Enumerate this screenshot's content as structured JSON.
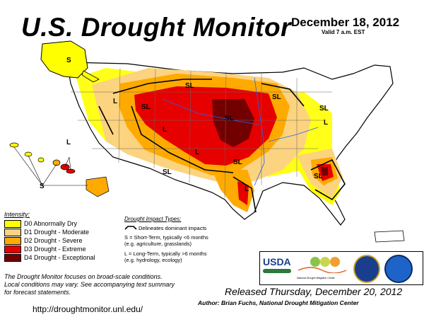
{
  "header": {
    "title": "U.S. Drought Monitor",
    "date": "December 18, 2012",
    "valid": "Valid 7 a.m. EST"
  },
  "legend": {
    "title": "Intensity:",
    "items": [
      {
        "label": "D0 Abnormally Dry",
        "color": "#ffff00"
      },
      {
        "label": "D1 Drought - Moderate",
        "color": "#fcd37f"
      },
      {
        "label": "D2 Drought - Severe",
        "color": "#ffaa00"
      },
      {
        "label": "D3 Drought - Extreme",
        "color": "#e60000"
      },
      {
        "label": "D4 Drought - Exceptional",
        "color": "#730000"
      }
    ]
  },
  "impact": {
    "title": "Drought Impact Types:",
    "delineates": "Delineates dominant impacts",
    "short_line1": "S = Short-Term, typically <6 months",
    "short_line2": "(e.g. agriculture, grasslands)",
    "long_line1": "L = Long-Term, typically >6 months",
    "long_line2": "(e.g. hydrology, ecology)"
  },
  "map_labels": {
    "sl": "SL",
    "s": "S",
    "l": "L"
  },
  "logos": {
    "usda": "USDA",
    "ndmc": "National Drought Mitigation Center"
  },
  "footer": {
    "note_line1": "The Drought Monitor focuses on broad-scale conditions.",
    "note_line2": "Local conditions may vary. See accompanying text summary",
    "note_line3": "for forecast statements.",
    "url": "http://droughtmonitor.unl.edu/",
    "released": "Released Thursday, December 20, 2012",
    "author": "Author: Brian Fuchs, National Drought Mitigation Center"
  }
}
